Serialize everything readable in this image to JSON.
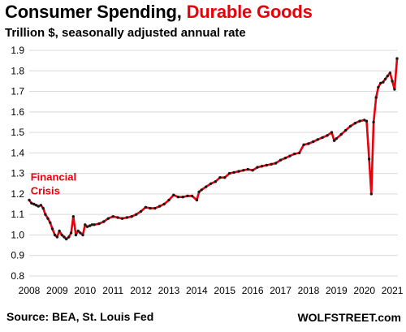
{
  "title_part1": "Consumer Spending,",
  "title_part2": "Durable Goods",
  "subtitle": "Trillion $, seasonally adjusted annual rate",
  "source": "Source: BEA, St. Louis Fed",
  "brand": "WOLFSTREET.com",
  "colors": {
    "line": "#e8000b",
    "marker": "#1a1a1a",
    "grid": "#d9d9d9",
    "annotation": "#e8000b",
    "title_accent": "#e8000b"
  },
  "chart_data": {
    "type": "line",
    "title": "Consumer Spending, Durable Goods",
    "subtitle": "Trillion $, seasonally adjusted annual rate",
    "xlabel": "",
    "ylabel": "",
    "xlim": [
      2008,
      2021.2
    ],
    "ylim": [
      0.8,
      1.9
    ],
    "grid": "horizontal",
    "x_ticks": [
      "2008",
      "2009",
      "2010",
      "2011",
      "2012",
      "2013",
      "2014",
      "2015",
      "2016",
      "2017",
      "2018",
      "2019",
      "2020",
      "2021"
    ],
    "y_ticks": [
      "0.8",
      "0.9",
      "1.0",
      "1.1",
      "1.2",
      "1.3",
      "1.4",
      "1.5",
      "1.6",
      "1.7",
      "1.8",
      "1.9"
    ],
    "annotations": [
      {
        "text": [
          "Financial",
          "Crisis"
        ],
        "x": 2008.05,
        "y": 1.265
      }
    ],
    "series": [
      {
        "points": [
          [
            2008.0,
            1.17
          ],
          [
            2008.08,
            1.155
          ],
          [
            2008.17,
            1.15
          ],
          [
            2008.25,
            1.145
          ],
          [
            2008.33,
            1.14
          ],
          [
            2008.42,
            1.145
          ],
          [
            2008.5,
            1.13
          ],
          [
            2008.58,
            1.1
          ],
          [
            2008.67,
            1.08
          ],
          [
            2008.75,
            1.06
          ],
          [
            2008.83,
            1.03
          ],
          [
            2008.92,
            1.0
          ],
          [
            2009.0,
            0.99
          ],
          [
            2009.08,
            1.02
          ],
          [
            2009.17,
            1.0
          ],
          [
            2009.25,
            0.99
          ],
          [
            2009.33,
            0.98
          ],
          [
            2009.42,
            0.99
          ],
          [
            2009.5,
            1.01
          ],
          [
            2009.58,
            1.09
          ],
          [
            2009.67,
            1.0
          ],
          [
            2009.75,
            1.02
          ],
          [
            2009.83,
            1.01
          ],
          [
            2009.92,
            1.0
          ],
          [
            2010.0,
            1.05
          ],
          [
            2010.08,
            1.04
          ],
          [
            2010.17,
            1.045
          ],
          [
            2010.25,
            1.05
          ],
          [
            2010.33,
            1.05
          ],
          [
            2010.5,
            1.055
          ],
          [
            2010.67,
            1.065
          ],
          [
            2010.83,
            1.08
          ],
          [
            2011.0,
            1.09
          ],
          [
            2011.17,
            1.085
          ],
          [
            2011.33,
            1.08
          ],
          [
            2011.5,
            1.085
          ],
          [
            2011.67,
            1.09
          ],
          [
            2011.83,
            1.1
          ],
          [
            2012.0,
            1.115
          ],
          [
            2012.17,
            1.135
          ],
          [
            2012.33,
            1.13
          ],
          [
            2012.5,
            1.13
          ],
          [
            2012.67,
            1.14
          ],
          [
            2012.83,
            1.15
          ],
          [
            2013.0,
            1.17
          ],
          [
            2013.17,
            1.195
          ],
          [
            2013.33,
            1.185
          ],
          [
            2013.5,
            1.185
          ],
          [
            2013.67,
            1.19
          ],
          [
            2013.83,
            1.19
          ],
          [
            2014.0,
            1.17
          ],
          [
            2014.08,
            1.21
          ],
          [
            2014.17,
            1.22
          ],
          [
            2014.33,
            1.235
          ],
          [
            2014.5,
            1.25
          ],
          [
            2014.67,
            1.26
          ],
          [
            2014.83,
            1.28
          ],
          [
            2015.0,
            1.28
          ],
          [
            2015.17,
            1.3
          ],
          [
            2015.33,
            1.305
          ],
          [
            2015.5,
            1.31
          ],
          [
            2015.67,
            1.315
          ],
          [
            2015.83,
            1.32
          ],
          [
            2016.0,
            1.315
          ],
          [
            2016.17,
            1.33
          ],
          [
            2016.33,
            1.335
          ],
          [
            2016.5,
            1.34
          ],
          [
            2016.67,
            1.345
          ],
          [
            2016.83,
            1.35
          ],
          [
            2017.0,
            1.365
          ],
          [
            2017.17,
            1.375
          ],
          [
            2017.33,
            1.385
          ],
          [
            2017.5,
            1.395
          ],
          [
            2017.67,
            1.4
          ],
          [
            2017.83,
            1.44
          ],
          [
            2018.0,
            1.445
          ],
          [
            2018.17,
            1.455
          ],
          [
            2018.33,
            1.465
          ],
          [
            2018.5,
            1.475
          ],
          [
            2018.67,
            1.485
          ],
          [
            2018.83,
            1.5
          ],
          [
            2018.92,
            1.46
          ],
          [
            2019.0,
            1.47
          ],
          [
            2019.17,
            1.49
          ],
          [
            2019.33,
            1.51
          ],
          [
            2019.5,
            1.53
          ],
          [
            2019.67,
            1.545
          ],
          [
            2019.83,
            1.555
          ],
          [
            2020.0,
            1.56
          ],
          [
            2020.08,
            1.555
          ],
          [
            2020.17,
            1.37
          ],
          [
            2020.25,
            1.2
          ],
          [
            2020.33,
            1.55
          ],
          [
            2020.42,
            1.67
          ],
          [
            2020.5,
            1.72
          ],
          [
            2020.58,
            1.74
          ],
          [
            2020.67,
            1.745
          ],
          [
            2020.75,
            1.76
          ],
          [
            2020.83,
            1.775
          ],
          [
            2020.92,
            1.79
          ],
          [
            2021.0,
            1.75
          ],
          [
            2021.08,
            1.71
          ],
          [
            2021.17,
            1.86
          ]
        ]
      }
    ]
  }
}
